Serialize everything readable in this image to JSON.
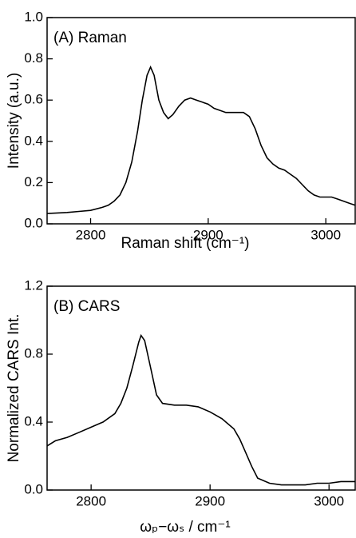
{
  "chart_data": [
    {
      "type": "line",
      "annotation": "(A) Raman",
      "xlabel": "Raman shift (cm⁻¹)",
      "ylabel": "Intensity (a.u.)",
      "xlim": [
        2763,
        3025
      ],
      "ylim": [
        0,
        1.0
      ],
      "xticks": [
        2800,
        2900,
        3000
      ],
      "yticks": [
        {
          "value": 0,
          "label": "0.0"
        },
        0.2,
        0.4,
        0.6,
        0.8,
        {
          "value": 1.0,
          "label": "1.0"
        }
      ],
      "x": [
        2763,
        2770,
        2780,
        2790,
        2800,
        2810,
        2815,
        2820,
        2825,
        2830,
        2835,
        2840,
        2844,
        2848,
        2851,
        2854,
        2858,
        2862,
        2866,
        2870,
        2875,
        2880,
        2885,
        2890,
        2895,
        2900,
        2905,
        2910,
        2915,
        2920,
        2925,
        2930,
        2935,
        2940,
        2945,
        2950,
        2955,
        2960,
        2965,
        2970,
        2975,
        2980,
        2985,
        2990,
        2995,
        3000,
        3005,
        3010,
        3015,
        3020,
        3025
      ],
      "series": [
        {
          "color": "#000000",
          "values": [
            0.05,
            0.052,
            0.055,
            0.06,
            0.065,
            0.08,
            0.09,
            0.11,
            0.14,
            0.2,
            0.3,
            0.45,
            0.6,
            0.72,
            0.76,
            0.72,
            0.6,
            0.54,
            0.51,
            0.53,
            0.57,
            0.6,
            0.61,
            0.6,
            0.59,
            0.58,
            0.56,
            0.55,
            0.54,
            0.54,
            0.54,
            0.54,
            0.52,
            0.46,
            0.38,
            0.32,
            0.29,
            0.27,
            0.26,
            0.24,
            0.22,
            0.19,
            0.16,
            0.14,
            0.13,
            0.13,
            0.13,
            0.12,
            0.11,
            0.1,
            0.09
          ]
        }
      ]
    },
    {
      "type": "line",
      "annotation": "(B) CARS",
      "xlabel": "ωₚ−ωₛ / cm⁻¹",
      "ylabel": "Normalized CARS Int.",
      "xlim": [
        2763,
        3022
      ],
      "ylim": [
        0,
        1.2
      ],
      "xticks": [
        2800,
        2900,
        3000
      ],
      "yticks": [
        {
          "value": 0,
          "label": "0.0"
        },
        0.4,
        0.8,
        1.2
      ],
      "x": [
        2763,
        2770,
        2780,
        2790,
        2800,
        2810,
        2820,
        2825,
        2830,
        2835,
        2840,
        2842,
        2845,
        2850,
        2855,
        2860,
        2870,
        2880,
        2890,
        2900,
        2910,
        2920,
        2925,
        2930,
        2935,
        2940,
        2950,
        2960,
        2970,
        2980,
        2990,
        3000,
        3010,
        3022
      ],
      "series": [
        {
          "color": "#000000",
          "values": [
            0.26,
            0.29,
            0.31,
            0.34,
            0.37,
            0.4,
            0.45,
            0.51,
            0.6,
            0.73,
            0.87,
            0.91,
            0.88,
            0.72,
            0.56,
            0.51,
            0.5,
            0.5,
            0.49,
            0.46,
            0.42,
            0.36,
            0.3,
            0.22,
            0.14,
            0.07,
            0.04,
            0.03,
            0.03,
            0.03,
            0.04,
            0.04,
            0.05,
            0.05
          ]
        }
      ]
    }
  ]
}
